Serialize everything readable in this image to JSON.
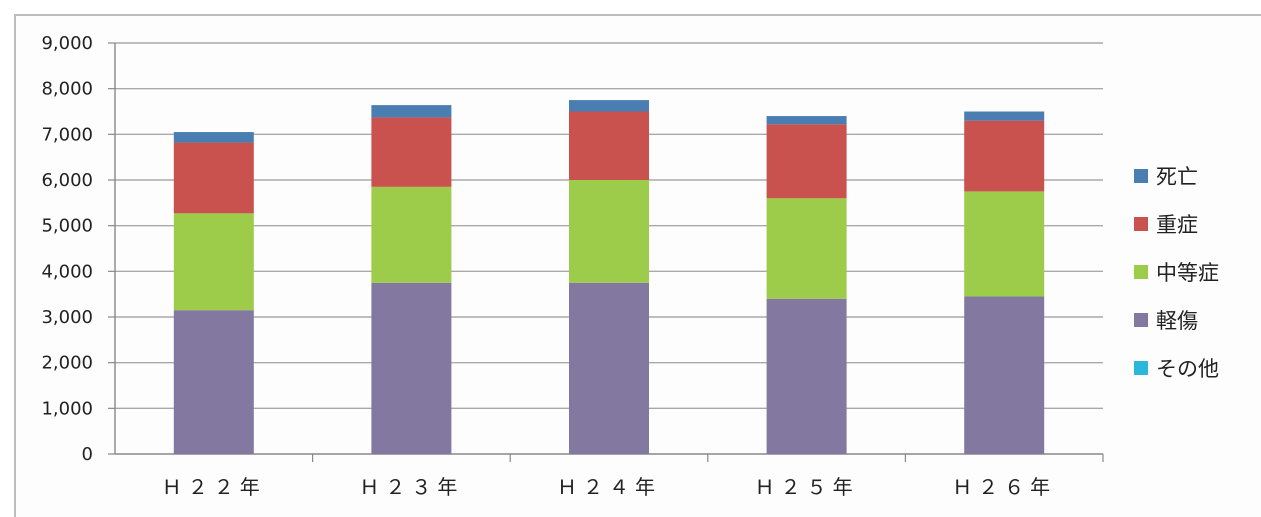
{
  "chart_data": {
    "type": "bar",
    "stacked": true,
    "categories": [
      "Ｈ２２年",
      "Ｈ２３年",
      "Ｈ２４年",
      "Ｈ２５年",
      "Ｈ２６年"
    ],
    "series": [
      {
        "name": "軽傷",
        "color": "#8379a0",
        "values": [
          3150,
          3750,
          3750,
          3400,
          3450
        ]
      },
      {
        "name": "中等症",
        "color": "#9ccc4a",
        "values": [
          2120,
          2100,
          2250,
          2200,
          2300
        ]
      },
      {
        "name": "重症",
        "color": "#c9524f",
        "values": [
          1550,
          1520,
          1500,
          1620,
          1550
        ]
      },
      {
        "name": "死亡",
        "color": "#4a7eb3",
        "values": [
          230,
          270,
          250,
          180,
          200
        ]
      },
      {
        "name": "その他",
        "color": "#2bb6dc",
        "values": [
          0,
          0,
          0,
          0,
          0
        ]
      }
    ],
    "legend_order": [
      "死亡",
      "重症",
      "中等症",
      "軽傷",
      "その他"
    ],
    "y_ticks": [
      "0",
      "1,000",
      "2,000",
      "3,000",
      "4,000",
      "5,000",
      "6,000",
      "7,000",
      "8,000",
      "9,000"
    ],
    "ylim": [
      0,
      9000
    ],
    "grid": true,
    "legend_position": "right"
  }
}
